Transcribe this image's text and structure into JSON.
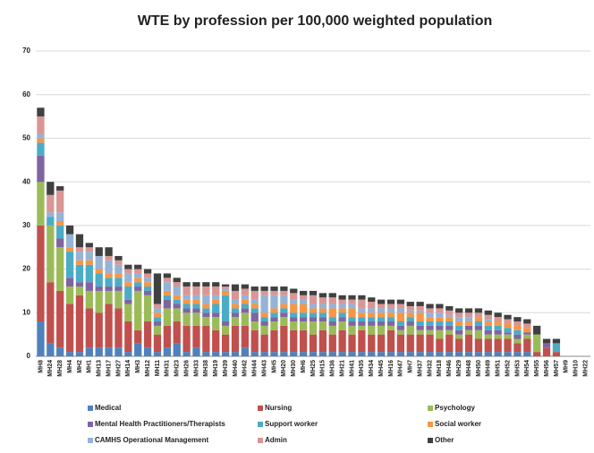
{
  "chart_data": {
    "type": "stacked_bar",
    "title": "WTE by profession per 100,000 weighted population",
    "categories": [
      "MH8",
      "MH24",
      "MH28",
      "MH4",
      "MH2",
      "MH1",
      "MH13",
      "MH17",
      "MH27",
      "MH14",
      "MH3",
      "MH12",
      "MH11",
      "MH31",
      "MH23",
      "MH26",
      "MH33",
      "MH38",
      "MH19",
      "MH39",
      "MH40",
      "MH42",
      "MH44",
      "MH43",
      "MH5",
      "MH20",
      "MH30",
      "MH6",
      "MH25",
      "MH15",
      "MH36",
      "MH21",
      "MH41",
      "MH35",
      "MH34",
      "MH45",
      "MH16",
      "MH47",
      "MH7",
      "MH37",
      "MH32",
      "MH18",
      "MH46",
      "MH29",
      "MH48",
      "MH50",
      "MH49",
      "MH51",
      "MH52",
      "MH53",
      "MH54",
      "MH55",
      "MH56",
      "MH57",
      "MH9",
      "MH10",
      "MH22"
    ],
    "series": [
      {
        "name": "Medical",
        "color": "#4f81bd",
        "values": [
          8,
          3,
          2,
          1,
          1,
          2,
          2,
          2,
          2,
          1,
          3,
          2,
          1,
          2,
          3,
          1,
          2,
          1,
          1,
          1,
          1,
          2,
          1,
          1,
          1,
          1,
          1,
          1,
          1,
          1,
          1,
          1,
          1,
          1,
          1,
          1,
          1,
          1,
          1,
          1,
          1,
          1,
          1,
          1,
          1,
          1,
          1,
          1,
          1,
          1,
          1,
          0,
          0,
          0,
          0,
          0,
          0
        ]
      },
      {
        "name": "Nursing",
        "color": "#c0504d",
        "values": [
          22,
          14,
          13,
          11,
          13,
          9,
          8,
          10,
          9,
          7,
          3,
          6,
          4,
          5,
          5,
          6,
          5,
          6,
          5,
          4,
          6,
          5,
          5,
          4,
          5,
          6,
          5,
          5,
          4,
          5,
          4,
          5,
          4,
          5,
          4,
          4,
          5,
          4,
          4,
          4,
          4,
          3,
          4,
          3,
          4,
          3,
          3,
          3,
          3,
          2,
          3,
          1,
          2,
          1,
          0,
          0,
          0
        ]
      },
      {
        "name": "Psychology",
        "color": "#9bbb59",
        "values": [
          10,
          13,
          10,
          4,
          2,
          4,
          5,
          3,
          4,
          4,
          9,
          6,
          2,
          4,
          3,
          3,
          3,
          2,
          3,
          2,
          2,
          3,
          2,
          2,
          2,
          2,
          2,
          2,
          3,
          2,
          2,
          2,
          2,
          1,
          2,
          2,
          1,
          1,
          2,
          1,
          1,
          2,
          1,
          1,
          1,
          2,
          1,
          1,
          1,
          1,
          1,
          4,
          0,
          0,
          0,
          0,
          0
        ]
      },
      {
        "name": "Mental Health Practitioners/Therapists",
        "color": "#8064a2",
        "values": [
          6,
          0,
          2,
          2,
          1,
          2,
          1,
          1,
          1,
          1,
          1,
          1,
          1,
          2,
          1,
          1,
          1,
          1,
          1,
          1,
          1,
          1,
          2,
          1,
          1,
          1,
          1,
          1,
          1,
          1,
          1,
          1,
          1,
          1,
          1,
          1,
          1,
          1,
          1,
          1,
          1,
          1,
          1,
          1,
          1,
          1,
          1,
          1,
          0.5,
          1,
          0.5,
          0,
          1,
          0,
          0,
          0,
          0
        ]
      },
      {
        "name": "Support worker",
        "color": "#4bacc6",
        "values": [
          3,
          2,
          3,
          6,
          4,
          4,
          3,
          2,
          2,
          3,
          1,
          1,
          1,
          1,
          1,
          1,
          1,
          1,
          2,
          6,
          1,
          1,
          1,
          1,
          1,
          1,
          1,
          1,
          1,
          1,
          1,
          1,
          1,
          1,
          1,
          1,
          1,
          1,
          1,
          1,
          1,
          1,
          1,
          1,
          0,
          1,
          1,
          1,
          1,
          1,
          0,
          0,
          0,
          2,
          0,
          0,
          0
        ]
      },
      {
        "name": "Social worker",
        "color": "#f79646",
        "values": [
          1,
          0,
          1,
          1,
          1,
          1,
          1,
          1,
          1,
          1,
          1,
          1,
          1,
          1,
          1,
          1,
          1,
          1,
          1,
          1,
          1,
          1,
          1,
          1,
          1,
          1,
          2,
          2,
          1,
          1,
          2,
          1,
          2,
          1,
          1,
          1,
          1,
          2,
          1,
          2,
          1,
          1,
          1,
          1,
          1,
          1,
          1,
          1,
          1,
          1,
          1,
          0,
          0,
          0,
          0,
          0,
          0
        ]
      },
      {
        "name": "CAMHS Operational Management",
        "color": "#95b3d7",
        "values": [
          1,
          1,
          2,
          3,
          2,
          2,
          3,
          3,
          2,
          2,
          1,
          1,
          1,
          2,
          2,
          1,
          1,
          2,
          1,
          0.5,
          1,
          1,
          1,
          4,
          3,
          2,
          1,
          1,
          1,
          1,
          1,
          1,
          1,
          1,
          1,
          1,
          1,
          1,
          0.5,
          0.5,
          1,
          1,
          0.5,
          1,
          1,
          0,
          0.5,
          0,
          0,
          0,
          0,
          0,
          0,
          0,
          0,
          0,
          0
        ]
      },
      {
        "name": "Admin",
        "color": "#d99694",
        "values": [
          4,
          4,
          5,
          0,
          1,
          1,
          0,
          1,
          1,
          1,
          1,
          1,
          1,
          1,
          1,
          2,
          2,
          2,
          2,
          0.5,
          2,
          1.5,
          2,
          1,
          1,
          1,
          1.5,
          1,
          2,
          1.5,
          1.5,
          1,
          1,
          2,
          1.5,
          1,
          1,
          1,
          1,
          1,
          1,
          1,
          1,
          1,
          1,
          1,
          1,
          1,
          1,
          1,
          1,
          0,
          0,
          0,
          0,
          0,
          0
        ]
      },
      {
        "name": "Other",
        "color": "#404040",
        "values": [
          2,
          3,
          1,
          2,
          3,
          1,
          2,
          2,
          1,
          1,
          1,
          1,
          7,
          1,
          1,
          1,
          1,
          1,
          1,
          0.5,
          1.5,
          1,
          1,
          1,
          1,
          1,
          1,
          1,
          1,
          1,
          1,
          1,
          1,
          1,
          1,
          1,
          1,
          1,
          1,
          1,
          1,
          1,
          1,
          1,
          1,
          1,
          1,
          1,
          1,
          1,
          1,
          2,
          1,
          1,
          0,
          0,
          0
        ]
      }
    ],
    "ylim": [
      0,
      70
    ],
    "yticks": [
      0,
      10,
      20,
      30,
      40,
      50,
      60,
      70
    ],
    "grid": true
  }
}
